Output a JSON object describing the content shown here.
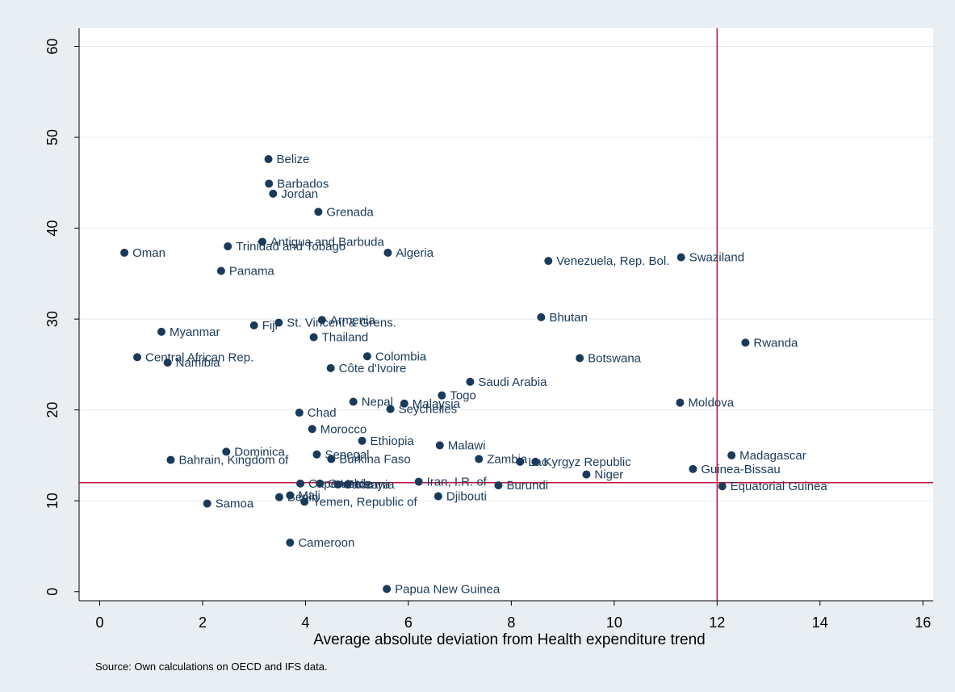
{
  "chart_data": {
    "type": "scatter",
    "title": "",
    "xlabel": "Average absolute deviation from Health expenditure trend",
    "ylabel": "",
    "xlim": [
      -0.4,
      16.2
    ],
    "ylim": [
      -1,
      62
    ],
    "xticks": [
      0,
      2,
      4,
      6,
      8,
      10,
      12,
      14,
      16
    ],
    "yticks": [
      0,
      10,
      20,
      30,
      40,
      50,
      60
    ],
    "grid": "horizontal",
    "legend": "none",
    "reference_lines": {
      "x": 12,
      "y": 12
    },
    "note": "Source: Own calculations on OECD and IFS data.",
    "colors": {
      "background": "#e9eef3",
      "plot_background": "#ffffff",
      "marker": "#1a3a5a",
      "reference_line": "#c0143c",
      "grid": "#e4eaef"
    },
    "points": [
      {
        "label": "Belize",
        "x": 3.28,
        "y": 47.6
      },
      {
        "label": "Barbados",
        "x": 3.29,
        "y": 44.9
      },
      {
        "label": "Jordan",
        "x": 3.37,
        "y": 43.8
      },
      {
        "label": "Grenada",
        "x": 4.25,
        "y": 41.8
      },
      {
        "label": "Oman",
        "x": 0.48,
        "y": 37.3
      },
      {
        "label": "Antigua and Barbuda",
        "x": 3.16,
        "y": 38.5
      },
      {
        "label": "Trinidad and Tobago",
        "x": 2.49,
        "y": 38.0
      },
      {
        "label": "Algeria",
        "x": 5.6,
        "y": 37.3
      },
      {
        "label": "Panama",
        "x": 2.36,
        "y": 35.3
      },
      {
        "label": "Venezuela, Rep. Bol.",
        "x": 8.72,
        "y": 36.4
      },
      {
        "label": "Swaziland",
        "x": 11.3,
        "y": 36.8
      },
      {
        "label": "Bhutan",
        "x": 8.58,
        "y": 30.2
      },
      {
        "label": "Armenia",
        "x": 4.32,
        "y": 29.9
      },
      {
        "label": "St. Vincent & Grens.",
        "x": 3.48,
        "y": 29.6
      },
      {
        "label": "Fiji",
        "x": 3.0,
        "y": 29.3
      },
      {
        "label": "Myanmar",
        "x": 1.2,
        "y": 28.6
      },
      {
        "label": "Thailand",
        "x": 4.16,
        "y": 28.0
      },
      {
        "label": "Rwanda",
        "x": 12.55,
        "y": 27.4
      },
      {
        "label": "Central African Rep.",
        "x": 0.73,
        "y": 25.8
      },
      {
        "label": "Namibia",
        "x": 1.32,
        "y": 25.2
      },
      {
        "label": "Colombia",
        "x": 5.2,
        "y": 25.9
      },
      {
        "label": "Botswana",
        "x": 9.33,
        "y": 25.7
      },
      {
        "label": "Côte d'Ivoire",
        "x": 4.49,
        "y": 24.6
      },
      {
        "label": "Saudi Arabia",
        "x": 7.2,
        "y": 23.1
      },
      {
        "label": "Togo",
        "x": 6.65,
        "y": 21.6
      },
      {
        "label": "Nepal",
        "x": 4.93,
        "y": 20.9
      },
      {
        "label": "Malaysia",
        "x": 5.92,
        "y": 20.7
      },
      {
        "label": "Seychelles",
        "x": 5.65,
        "y": 20.1
      },
      {
        "label": "Moldova",
        "x": 11.28,
        "y": 20.8
      },
      {
        "label": "Chad",
        "x": 3.88,
        "y": 19.7
      },
      {
        "label": "Morocco",
        "x": 4.13,
        "y": 17.9
      },
      {
        "label": "Ethiopia",
        "x": 5.1,
        "y": 16.6
      },
      {
        "label": "Malawi",
        "x": 6.61,
        "y": 16.1
      },
      {
        "label": "Dominica",
        "x": 2.46,
        "y": 15.4
      },
      {
        "label": "Senegal",
        "x": 4.22,
        "y": 15.1
      },
      {
        "label": "Madagascar",
        "x": 12.28,
        "y": 15.0
      },
      {
        "label": "Bahrain, Kingdom of",
        "x": 1.38,
        "y": 14.5
      },
      {
        "label": "Burkina Faso",
        "x": 4.5,
        "y": 14.6
      },
      {
        "label": "Zambia",
        "x": 7.37,
        "y": 14.6
      },
      {
        "label": "Lao",
        "x": 8.17,
        "y": 14.3
      },
      {
        "label": "Kyrgyz Republic",
        "x": 8.47,
        "y": 14.3
      },
      {
        "label": "Guinea-Bissau",
        "x": 11.53,
        "y": 13.5
      },
      {
        "label": "Niger",
        "x": 9.46,
        "y": 12.9
      },
      {
        "label": "Iran, I.R. of",
        "x": 6.2,
        "y": 12.1
      },
      {
        "label": "Cape Verde",
        "x": 3.9,
        "y": 11.9
      },
      {
        "label": "Gambia",
        "x": 4.28,
        "y": 11.9
      },
      {
        "label": "Tanzania",
        "x": 4.63,
        "y": 11.8
      },
      {
        "label": "Kenya",
        "x": 4.82,
        "y": 11.8
      },
      {
        "label": "Burundi",
        "x": 7.75,
        "y": 11.7
      },
      {
        "label": "Equatorial Guinea",
        "x": 12.1,
        "y": 11.6
      },
      {
        "label": "Mali",
        "x": 3.7,
        "y": 10.6
      },
      {
        "label": "Benin",
        "x": 3.49,
        "y": 10.4
      },
      {
        "label": "Djibouti",
        "x": 6.58,
        "y": 10.5
      },
      {
        "label": "Yemen, Republic of",
        "x": 3.98,
        "y": 9.9
      },
      {
        "label": "Samoa",
        "x": 2.09,
        "y": 9.7
      },
      {
        "label": "Cameroon",
        "x": 3.7,
        "y": 5.4
      },
      {
        "label": "Papua New Guinea",
        "x": 5.58,
        "y": 0.3
      }
    ]
  }
}
